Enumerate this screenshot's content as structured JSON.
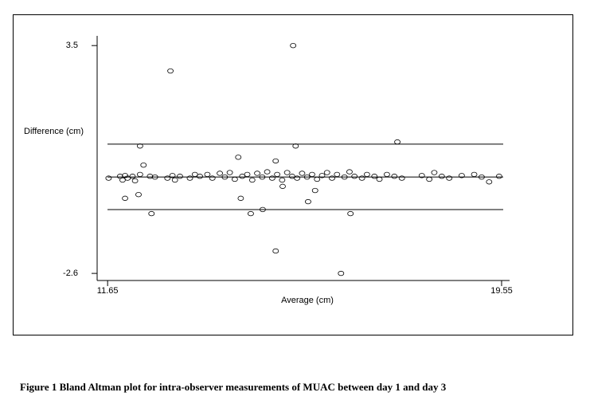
{
  "chart_data": {
    "type": "scatter",
    "caption": "Figure 1 Bland Altman plot for intra-observer measurements of MUAC between day 1 and day 3",
    "x_label": "Average (cm)",
    "y_label": "Difference (cm)",
    "xlim": [
      11.44,
      19.71
    ],
    "ylim": [
      -2.79,
      3.76
    ],
    "xticks": [
      11.65,
      19.55
    ],
    "yticks": [
      3.5,
      -2.6
    ],
    "reference_lines": [
      -0.02,
      0.86,
      -0.89
    ],
    "color": "#000000",
    "x": [
      12.91,
      15.37,
      12.3,
      15.42,
      17.46,
      15.02,
      16.33,
      12.53,
      14.52,
      16.52,
      14.76,
      15.67,
      14.32,
      12.0,
      12.27,
      14.27,
      15.02,
      12.37,
      15.81,
      15.16,
      11.67,
      11.9,
      11.95,
      12.0,
      12.05,
      12.15,
      12.2,
      12.3,
      12.5,
      12.6,
      12.85,
      12.95,
      13.0,
      13.1,
      13.3,
      13.4,
      13.5,
      13.65,
      13.75,
      13.9,
      14.0,
      14.1,
      14.2,
      14.35,
      14.45,
      14.55,
      14.65,
      14.75,
      14.85,
      14.95,
      15.05,
      15.15,
      15.25,
      15.35,
      15.45,
      15.55,
      15.65,
      15.75,
      15.85,
      15.95,
      16.05,
      16.15,
      16.25,
      16.4,
      16.5,
      16.6,
      16.75,
      16.85,
      17.0,
      17.1,
      17.25,
      17.4,
      17.55,
      17.95,
      18.1,
      18.2,
      18.35,
      18.5,
      18.75,
      19.0,
      19.15,
      19.3,
      19.5
    ],
    "values": [
      2.82,
      3.5,
      0.81,
      0.81,
      0.92,
      -2.0,
      -2.6,
      -1.0,
      -1.0,
      -1.0,
      -0.89,
      -0.68,
      -0.59,
      -0.59,
      -0.49,
      0.51,
      0.41,
      0.3,
      -0.38,
      -0.27,
      -0.05,
      0.0,
      -0.1,
      0.02,
      -0.05,
      0.0,
      -0.12,
      0.05,
      0.0,
      -0.02,
      -0.05,
      0.02,
      -0.1,
      0.0,
      -0.05,
      0.05,
      0.0,
      0.05,
      -0.05,
      0.08,
      -0.02,
      0.1,
      -0.08,
      0.0,
      0.05,
      -0.1,
      0.08,
      -0.02,
      0.12,
      -0.05,
      0.05,
      -0.1,
      0.1,
      0.0,
      -0.05,
      0.08,
      -0.02,
      0.05,
      -0.08,
      0.02,
      0.1,
      -0.05,
      0.05,
      -0.02,
      0.12,
      0.0,
      -0.05,
      0.05,
      0.0,
      -0.08,
      0.05,
      0.0,
      -0.05,
      0.02,
      -0.08,
      0.1,
      0.0,
      -0.05,
      0.02,
      0.05,
      -0.02,
      -0.15,
      0.0
    ]
  }
}
